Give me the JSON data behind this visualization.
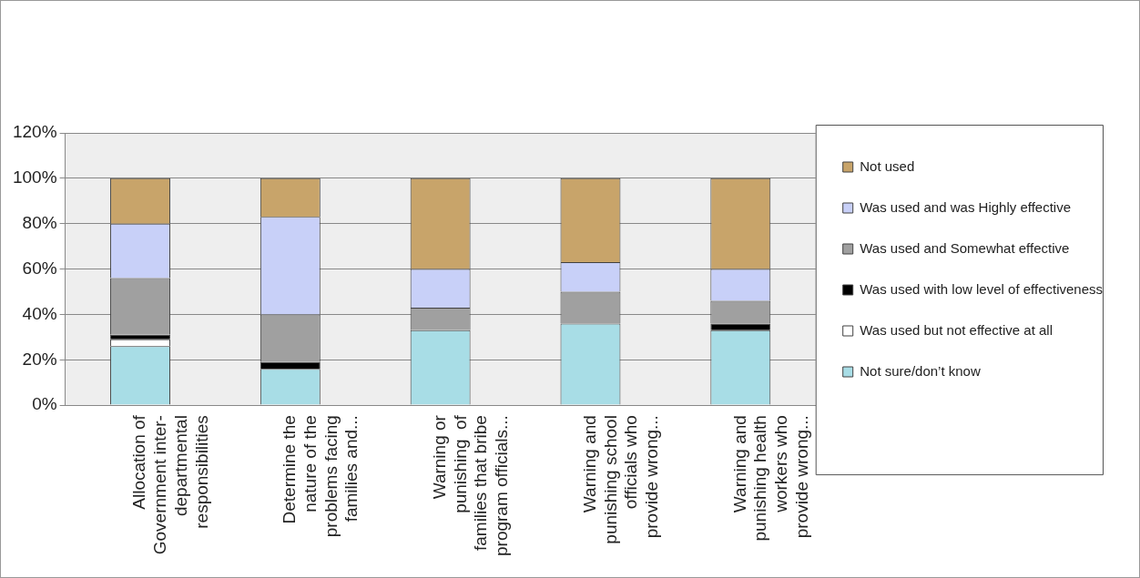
{
  "chart_data": {
    "type": "bar",
    "stacked": true,
    "categories": [
      "Allocation of Government inter-departmental responsibilities",
      "Determine the nature of the problems facing families and...",
      "Warning or punishing  of families that bribe program officials...",
      "Warning and punishing school officials who provide wrong...",
      "Warning and punishing health workers who provide wrong..."
    ],
    "series": [
      {
        "name": "Not sure/don’t know",
        "color": "#a8dde6",
        "values": [
          26,
          16,
          33,
          36,
          33
        ]
      },
      {
        "name": "Was used but not effective at all",
        "color": "#ffffff",
        "values": [
          3,
          0,
          0,
          0,
          0
        ]
      },
      {
        "name": "Was used with low level of effectiveness",
        "color": "#000000",
        "values": [
          2,
          3,
          0,
          0,
          3
        ]
      },
      {
        "name": "Was used and Somewhat effective",
        "color": "#a0a0a0",
        "values": [
          25,
          21,
          10,
          14,
          10
        ]
      },
      {
        "name": "Was used and was Highly effective",
        "color": "#c8d0f8",
        "values": [
          24,
          43,
          17,
          13,
          14
        ]
      },
      {
        "name": "Not used",
        "color": "#c8a46a",
        "values": [
          20,
          17,
          40,
          37,
          40
        ]
      }
    ],
    "ylim": [
      0,
      120
    ],
    "yticks": [
      {
        "value": 0,
        "label": "0%"
      },
      {
        "value": 20,
        "label": "20%"
      },
      {
        "value": 40,
        "label": "40%"
      },
      {
        "value": 60,
        "label": "60%"
      },
      {
        "value": 80,
        "label": "80%"
      },
      {
        "value": 100,
        "label": "100%"
      },
      {
        "value": 120,
        "label": "120%"
      }
    ],
    "grid": "y",
    "legend": "right"
  }
}
